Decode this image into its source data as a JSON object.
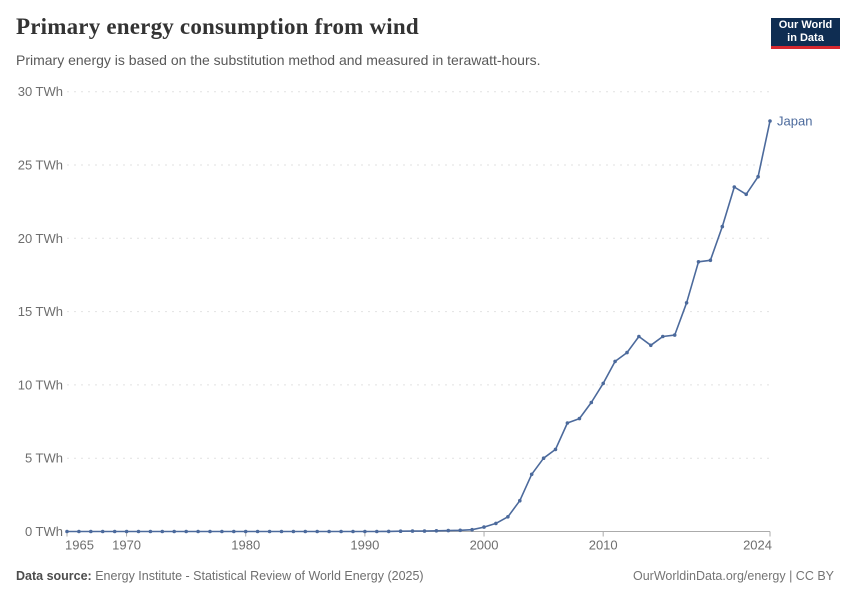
{
  "header": {
    "title": "Primary energy consumption from wind",
    "subtitle": "Primary energy is based on the substitution method and measured in terawatt-hours."
  },
  "logo": {
    "line1": "Our World",
    "line2": "in Data",
    "background_color": "#0f2d52",
    "accent_bar_color": "#d7282f"
  },
  "chart_data": {
    "type": "line",
    "title": "Primary energy consumption from wind",
    "subtitle": "Primary energy is based on the substitution method and measured in terawatt-hours.",
    "unit": "TWh",
    "xlim": [
      1965,
      2024
    ],
    "ylim": [
      0,
      30
    ],
    "yticks": [
      0,
      5,
      10,
      15,
      20,
      25,
      30
    ],
    "xticks": [
      1965,
      1970,
      1980,
      1990,
      2000,
      2010,
      2024
    ],
    "grid": "horizontal-dashed",
    "legend_position": "line-end-label",
    "color": "#4c6a9c",
    "x": [
      1965,
      1966,
      1967,
      1968,
      1969,
      1970,
      1971,
      1972,
      1973,
      1974,
      1975,
      1976,
      1977,
      1978,
      1979,
      1980,
      1981,
      1982,
      1983,
      1984,
      1985,
      1986,
      1987,
      1988,
      1989,
      1990,
      1991,
      1992,
      1993,
      1994,
      1995,
      1996,
      1997,
      1998,
      1999,
      2000,
      2001,
      2002,
      2003,
      2004,
      2005,
      2006,
      2007,
      2008,
      2009,
      2010,
      2011,
      2012,
      2013,
      2014,
      2015,
      2016,
      2017,
      2018,
      2019,
      2020,
      2021,
      2022,
      2023,
      2024
    ],
    "series": [
      {
        "name": "Japan",
        "values": [
          0,
          0,
          0,
          0,
          0,
          0,
          0,
          0,
          0,
          0,
          0,
          0,
          0,
          0,
          0,
          0,
          0,
          0,
          0,
          0,
          0,
          0,
          0,
          0,
          0,
          0,
          0,
          0.01,
          0.02,
          0.03,
          0.03,
          0.05,
          0.06,
          0.08,
          0.12,
          0.3,
          0.55,
          1.0,
          2.1,
          3.9,
          5.0,
          5.6,
          7.4,
          7.7,
          8.8,
          10.1,
          11.6,
          12.2,
          13.3,
          12.7,
          13.3,
          13.4,
          15.6,
          18.4,
          18.5,
          20.8,
          23.5,
          23.0,
          24.2,
          28.0
        ]
      }
    ]
  },
  "footer": {
    "datasource_label": "Data source:",
    "datasource_text": " Energy Institute - Statistical Review of World Energy (2025)",
    "attribution": "OurWorldinData.org/energy | CC BY"
  }
}
